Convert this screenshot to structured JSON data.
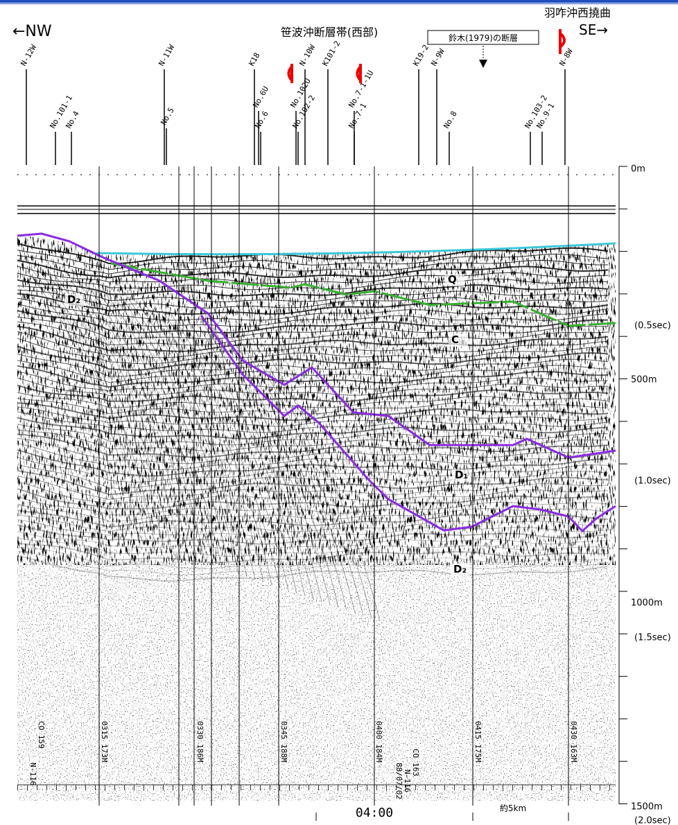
{
  "header": {
    "west": "←NW",
    "east": "SE→",
    "fault_zone": "笹波沖断層帯(西部)",
    "flexure": "羽咋沖西撓曲",
    "suzuki_fault": "鈴木(1979)の断層"
  },
  "tracks": [
    {
      "label": "N-12W"
    },
    {
      "label": "No.101-1"
    },
    {
      "label": "No.4"
    },
    {
      "label": "No.5"
    },
    {
      "label": "N-11W"
    },
    {
      "label": "K18"
    },
    {
      "label": "No.6U"
    },
    {
      "label": "No.6"
    },
    {
      "label": "No.102U"
    },
    {
      "label": "No.102-2"
    },
    {
      "label": "N-10W"
    },
    {
      "label": "K101-2"
    },
    {
      "label": "No.7-1-1U"
    },
    {
      "label": "No.7-1"
    },
    {
      "label": "K19-2"
    },
    {
      "label": "N-9W"
    },
    {
      "label": "No.8"
    },
    {
      "label": "No.103-2"
    },
    {
      "label": "No.9-1"
    },
    {
      "label": "N-8W"
    }
  ],
  "depth_axis": [
    "0m",
    "(0.5sec)",
    "500m",
    "(1.0sec)",
    "1000m",
    "(1.5sec)",
    "1500m",
    "(2.0sec)"
  ],
  "layers": [
    "Q",
    "C",
    "D₁",
    "D₂",
    "D₂"
  ],
  "records": [
    "0315 173M",
    "0330 186M",
    "0345 188M",
    "0400 184M",
    "0415 175M",
    "0430 163M",
    "CO 159",
    "N-116",
    "CO 163",
    "N-116",
    "88/07/02"
  ],
  "footer": {
    "time": "04:00",
    "scale": "約5km"
  }
}
